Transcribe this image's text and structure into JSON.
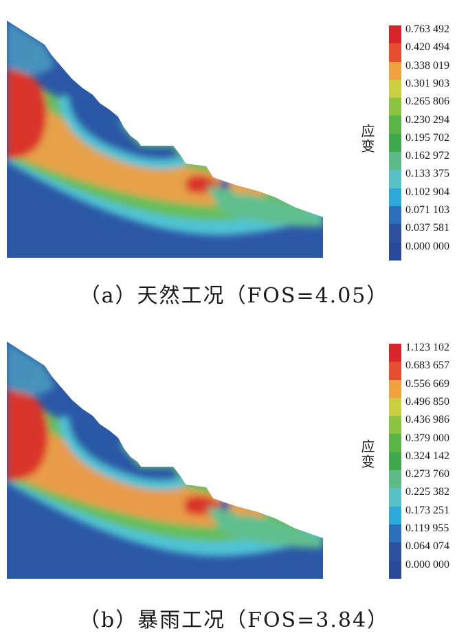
{
  "panels": [
    {
      "id": "a",
      "caption": "（a）天然工况（FOS=4.05）",
      "quantity_label": "应变",
      "legend": [
        "0.763 492",
        "0.420 494",
        "0.338 019",
        "0.301 903",
        "0.265 806",
        "0.230 294",
        "0.195 702",
        "0.162 972",
        "0.133 375",
        "0.102 904",
        "0.071 103",
        "0.037 581",
        "0.000 000"
      ]
    },
    {
      "id": "b",
      "caption": "（b）暴雨工况（FOS=3.84）",
      "quantity_label": "应变",
      "legend": [
        "1.123 102",
        "0.683 657",
        "0.556 669",
        "0.496 850",
        "0.436 986",
        "0.379 000",
        "0.324 142",
        "0.273 760",
        "0.225 382",
        "0.173 251",
        "0.119 955",
        "0.064 074",
        "0.000 000"
      ]
    }
  ],
  "colorbar": [
    "#d7262b",
    "#e4502e",
    "#f0a03d",
    "#c9cf3e",
    "#8cc43f",
    "#5ab446",
    "#3fa84a",
    "#5cbb86",
    "#56c2c6",
    "#2ea9dc",
    "#2b6fbd",
    "#2c4f9f",
    "#29489a"
  ]
}
